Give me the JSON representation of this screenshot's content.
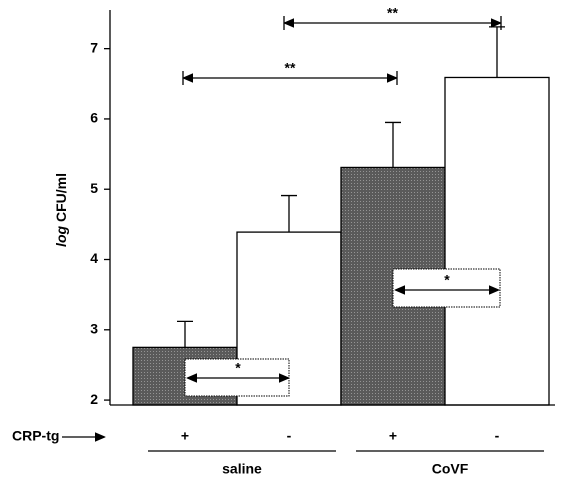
{
  "chart_data": {
    "type": "bar",
    "ylabel_italic": "log",
    "ylabel": "CFU/ml",
    "row_label": "CRP-tg",
    "categories": [
      "+",
      "-",
      "+",
      "-"
    ],
    "groups": [
      "saline",
      "CoVF"
    ],
    "values": [
      2.75,
      4.39,
      5.31,
      6.59
    ],
    "errors": [
      0.37,
      0.52,
      0.64,
      0.72
    ],
    "colors": [
      "#5a5a5a",
      "#ffffff",
      "#5a5a5a",
      "#ffffff"
    ],
    "ylim": [
      1.93,
      7.55
    ],
    "yticks": [
      2,
      3,
      4,
      5,
      6,
      7
    ],
    "annotations": [
      "**",
      "**",
      "*",
      "*"
    ]
  }
}
